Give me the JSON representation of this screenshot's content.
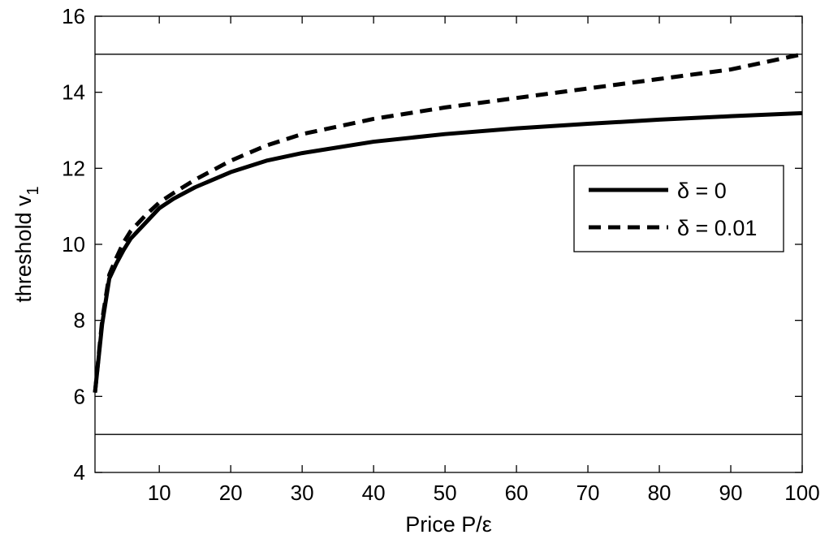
{
  "chart_data": {
    "type": "line",
    "title": "",
    "xlabel": "Price P/ε",
    "ylabel": {
      "main": "threshold v",
      "subscript": "1"
    },
    "xlim": [
      1,
      100
    ],
    "ylim": [
      4,
      16
    ],
    "xticks": [
      10,
      20,
      30,
      40,
      50,
      60,
      70,
      80,
      90,
      100
    ],
    "yticks": [
      4,
      6,
      8,
      10,
      12,
      14,
      16
    ],
    "grid": false,
    "legend_position": "center-right",
    "series": [
      {
        "name": "δ = 0",
        "style": "solid",
        "color": "#000000",
        "x": [
          1,
          2,
          3,
          4,
          5,
          6,
          8,
          10,
          12,
          15,
          20,
          25,
          30,
          40,
          50,
          60,
          70,
          80,
          90,
          100
        ],
        "y": [
          6.1,
          7.9,
          9.1,
          9.5,
          9.85,
          10.15,
          10.55,
          10.95,
          11.2,
          11.5,
          11.9,
          12.2,
          12.4,
          12.7,
          12.9,
          13.05,
          13.17,
          13.28,
          13.37,
          13.45
        ]
      },
      {
        "name": "δ = 0.01",
        "style": "dashed",
        "color": "#000000",
        "x": [
          1,
          2,
          3,
          4,
          5,
          6,
          8,
          10,
          12,
          15,
          20,
          25,
          30,
          40,
          50,
          60,
          70,
          80,
          90,
          100
        ],
        "y": [
          6.1,
          8.0,
          9.2,
          9.65,
          10.05,
          10.35,
          10.75,
          11.1,
          11.35,
          11.7,
          12.2,
          12.6,
          12.9,
          13.3,
          13.6,
          13.85,
          14.1,
          14.35,
          14.6,
          15.0
        ]
      }
    ],
    "reference_lines": [
      {
        "y": 15,
        "style": "thin"
      },
      {
        "y": 5,
        "style": "thin"
      }
    ]
  }
}
